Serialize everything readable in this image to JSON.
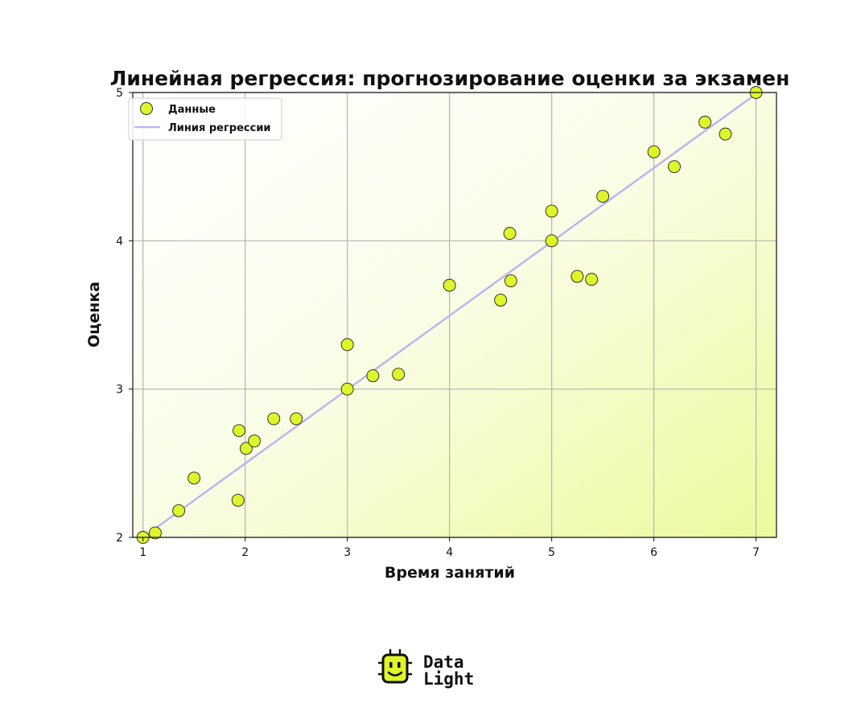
{
  "chart_data": {
    "type": "scatter",
    "title": "Линейная регрессия: прогнозирование оценки за экзамен",
    "xlabel": "Время занятий",
    "ylabel": "Оценка",
    "xlim": [
      0.9,
      7.2
    ],
    "ylim": [
      2,
      5
    ],
    "xticks": [
      1,
      2,
      3,
      4,
      5,
      6,
      7
    ],
    "yticks": [
      2,
      3,
      4,
      5
    ],
    "grid": true,
    "legend_position": "top-left",
    "series": [
      {
        "name": "Данные",
        "kind": "scatter",
        "color": "#ddf52a",
        "edge_color": "#222222",
        "points": [
          [
            1.0,
            2.0
          ],
          [
            1.12,
            2.03
          ],
          [
            1.35,
            2.18
          ],
          [
            1.5,
            2.4
          ],
          [
            1.93,
            2.25
          ],
          [
            1.94,
            2.72
          ],
          [
            2.01,
            2.6
          ],
          [
            2.09,
            2.65
          ],
          [
            2.28,
            2.8
          ],
          [
            2.5,
            2.8
          ],
          [
            3.0,
            3.3
          ],
          [
            3.0,
            3.0
          ],
          [
            3.25,
            3.09
          ],
          [
            3.5,
            3.1
          ],
          [
            4.0,
            3.7
          ],
          [
            4.5,
            3.6
          ],
          [
            4.59,
            4.05
          ],
          [
            4.6,
            3.73
          ],
          [
            5.0,
            4.2
          ],
          [
            5.0,
            4.0
          ],
          [
            5.25,
            3.76
          ],
          [
            5.39,
            3.74
          ],
          [
            5.5,
            4.3
          ],
          [
            6.0,
            4.6
          ],
          [
            6.2,
            4.5
          ],
          [
            6.5,
            4.8
          ],
          [
            6.7,
            4.72
          ],
          [
            7.0,
            5.0
          ]
        ]
      },
      {
        "name": "Линия регрессии",
        "kind": "line",
        "color": "#c0b4f2",
        "points": [
          [
            0.9,
            1.95
          ],
          [
            7.2,
            5.09
          ]
        ]
      }
    ]
  },
  "branding": {
    "logo_line1": "Data",
    "logo_line2": "Light",
    "logo_icon": "robot-face-icon"
  }
}
